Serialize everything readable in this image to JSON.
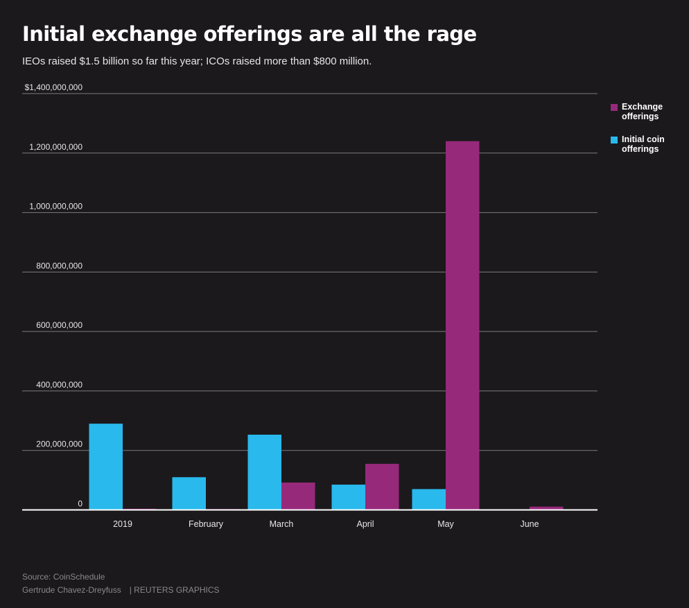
{
  "chart_data": {
    "type": "bar",
    "title": "Initial exchange offerings are all the rage",
    "subtitle": "IEOs raised $1.5 billion so far this year; ICOs raised more than $800 million.",
    "categories": [
      "2019",
      "February",
      "March",
      "April",
      "May",
      "June"
    ],
    "series": [
      {
        "name": "Initial coin offerings",
        "color": "#29b9ec",
        "values": [
          290000000,
          110000000,
          253000000,
          85000000,
          70000000,
          0
        ]
      },
      {
        "name": "Exchange offerings",
        "color": "#97297b",
        "values": [
          4000000,
          3000000,
          92000000,
          155000000,
          1240000000,
          11000000
        ]
      }
    ],
    "ylim": [
      0,
      1400000000
    ],
    "yticks": [
      {
        "value": 0,
        "label": "0"
      },
      {
        "value": 200000000,
        "label": "200,000,000"
      },
      {
        "value": 400000000,
        "label": "400,000,000"
      },
      {
        "value": 600000000,
        "label": "600,000,000"
      },
      {
        "value": 800000000,
        "label": "800,000,000"
      },
      {
        "value": 1000000000,
        "label": "1,000,000,000"
      },
      {
        "value": 1200000000,
        "label": "1,200,000,000"
      },
      {
        "value": 1400000000,
        "label": "$1,400,000,000"
      }
    ],
    "grid": true,
    "legend_position": "right",
    "legend": [
      {
        "label": "Exchange offerings",
        "color": "#97297b"
      },
      {
        "label": "Initial coin offerings",
        "color": "#29b9ec"
      }
    ]
  },
  "footer": {
    "source": "Source: CoinSchedule",
    "author": "Gertrude Chavez-Dreyfuss",
    "publisher": "| REUTERS GRAPHICS"
  }
}
